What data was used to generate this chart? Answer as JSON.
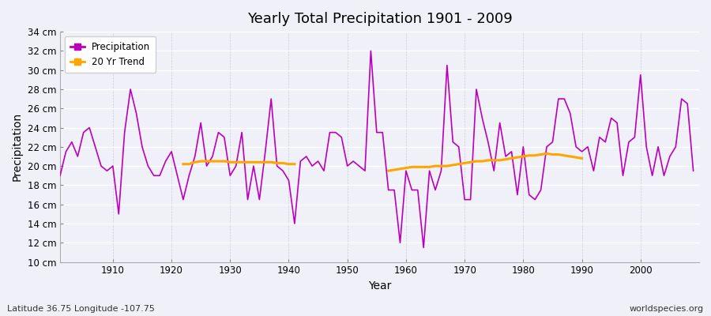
{
  "title": "Yearly Total Precipitation 1901 - 2009",
  "xlabel": "Year",
  "ylabel": "Precipitation",
  "subtitle": "Latitude 36.75 Longitude -107.75",
  "watermark": "worldspecies.org",
  "bg_color": "#f0f0f8",
  "line_color": "#bb00bb",
  "trend_color": "#ffa500",
  "ylim": [
    10,
    34
  ],
  "ytick_step": 2,
  "years": [
    1901,
    1902,
    1903,
    1904,
    1905,
    1906,
    1907,
    1908,
    1909,
    1910,
    1911,
    1912,
    1913,
    1914,
    1915,
    1916,
    1917,
    1918,
    1919,
    1920,
    1921,
    1922,
    1923,
    1924,
    1925,
    1926,
    1927,
    1928,
    1929,
    1930,
    1931,
    1932,
    1933,
    1934,
    1935,
    1936,
    1937,
    1938,
    1939,
    1940,
    1941,
    1942,
    1943,
    1944,
    1945,
    1946,
    1947,
    1948,
    1949,
    1950,
    1951,
    1952,
    1953,
    1954,
    1955,
    1956,
    1957,
    1958,
    1959,
    1960,
    1961,
    1962,
    1963,
    1964,
    1965,
    1966,
    1967,
    1968,
    1969,
    1970,
    1971,
    1972,
    1973,
    1974,
    1975,
    1976,
    1977,
    1978,
    1979,
    1980,
    1981,
    1982,
    1983,
    1984,
    1985,
    1986,
    1987,
    1988,
    1989,
    1990,
    1991,
    1992,
    1993,
    1994,
    1995,
    1996,
    1997,
    1998,
    1999,
    2000,
    2001,
    2002,
    2003,
    2004,
    2005,
    2006,
    2007,
    2008,
    2009
  ],
  "precip": [
    19.0,
    21.5,
    22.5,
    21.0,
    23.5,
    24.0,
    22.0,
    20.0,
    19.5,
    20.0,
    15.0,
    23.5,
    28.0,
    25.5,
    22.0,
    20.0,
    19.0,
    19.0,
    20.5,
    21.5,
    19.0,
    16.5,
    19.0,
    21.0,
    24.5,
    20.0,
    21.0,
    23.5,
    23.0,
    19.0,
    20.0,
    23.5,
    16.5,
    20.0,
    16.5,
    21.5,
    27.0,
    20.0,
    19.5,
    18.5,
    14.0,
    20.5,
    21.0,
    20.0,
    20.5,
    19.5,
    23.5,
    23.5,
    23.0,
    20.0,
    20.5,
    20.0,
    19.5,
    32.0,
    23.5,
    23.5,
    17.5,
    17.5,
    12.0,
    19.5,
    17.5,
    17.5,
    11.5,
    19.5,
    17.5,
    19.5,
    30.5,
    22.5,
    22.0,
    16.5,
    16.5,
    28.0,
    25.0,
    22.5,
    19.5,
    24.5,
    21.0,
    21.5,
    17.0,
    22.0,
    17.0,
    16.5,
    17.5,
    22.0,
    22.5,
    27.0,
    27.0,
    25.5,
    22.0,
    21.5,
    22.0,
    19.5,
    23.0,
    22.5,
    25.0,
    24.5,
    19.0,
    22.5,
    23.0,
    29.5,
    22.0,
    19.0,
    22.0,
    19.0,
    21.0,
    22.0,
    27.0,
    26.5,
    19.5
  ],
  "trend_years_1": [
    1922,
    1923,
    1924,
    1925,
    1926,
    1927,
    1928,
    1929,
    1930,
    1931,
    1932,
    1933,
    1934,
    1935,
    1936,
    1937,
    1938,
    1939,
    1940,
    1941
  ],
  "trend_values_1": [
    20.2,
    20.2,
    20.4,
    20.5,
    20.5,
    20.5,
    20.5,
    20.5,
    20.4,
    20.4,
    20.4,
    20.4,
    20.4,
    20.4,
    20.4,
    20.4,
    20.3,
    20.3,
    20.2,
    20.2
  ],
  "trend_years_2": [
    1957,
    1958,
    1959,
    1960,
    1961,
    1962,
    1963,
    1964,
    1965,
    1966,
    1967,
    1968,
    1969,
    1970,
    1971,
    1972,
    1973,
    1974,
    1975,
    1976,
    1977,
    1978,
    1979,
    1980,
    1981,
    1982,
    1983,
    1984,
    1985,
    1986,
    1987,
    1988,
    1989,
    1990
  ],
  "trend_values_2": [
    19.5,
    19.6,
    19.7,
    19.8,
    19.9,
    19.9,
    19.9,
    19.9,
    20.0,
    20.0,
    20.0,
    20.1,
    20.2,
    20.3,
    20.4,
    20.5,
    20.5,
    20.6,
    20.6,
    20.6,
    20.7,
    20.8,
    20.9,
    21.0,
    21.1,
    21.1,
    21.2,
    21.3,
    21.2,
    21.2,
    21.1,
    21.0,
    20.9,
    20.8
  ]
}
